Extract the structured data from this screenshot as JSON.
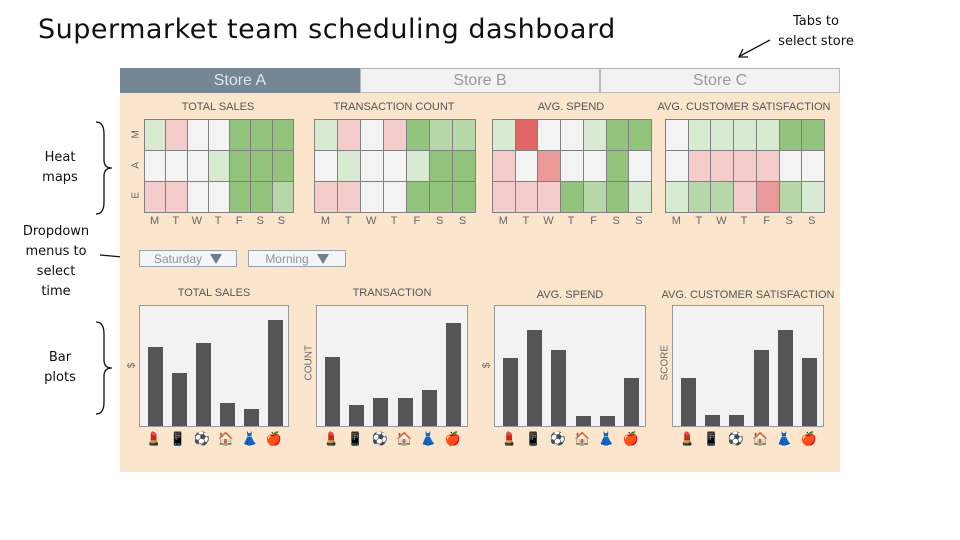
{
  "page_title": "Supermarket team scheduling dashboard",
  "annotations": {
    "tabs": "Tabs to\nselect store",
    "heat": "Heat\nmaps",
    "dropdowns": "Dropdown\nmenus to\nselect\ntime",
    "bars": "Bar\nplots"
  },
  "tabs": [
    {
      "label": "Store A",
      "active": true
    },
    {
      "label": "Store B",
      "active": false
    },
    {
      "label": "Store C",
      "active": false
    }
  ],
  "days": [
    "M",
    "T",
    "W",
    "T",
    "F",
    "S",
    "S"
  ],
  "shifts": [
    "M",
    "A",
    "E"
  ],
  "heat_scale": {
    "-3": "#e06666",
    "-2": "#ea9999",
    "-1": "#f4cccc",
    "0": "#f3f3f3",
    "1": "#d9ead3",
    "2": "#b6d7a8",
    "3": "#93c47d"
  },
  "heatmaps": [
    {
      "title": "TOTAL SALES",
      "show_row_labels": true,
      "rows": [
        [
          1,
          -1,
          0,
          0,
          3,
          3,
          3
        ],
        [
          0,
          0,
          0,
          1,
          3,
          3,
          3
        ],
        [
          -1,
          -1,
          0,
          0,
          3,
          3,
          2
        ]
      ]
    },
    {
      "title": "TRANSACTION COUNT",
      "show_row_labels": false,
      "rows": [
        [
          1,
          -1,
          0,
          -1,
          3,
          2,
          2
        ],
        [
          0,
          1,
          0,
          0,
          1,
          3,
          3
        ],
        [
          -1,
          -1,
          0,
          0,
          3,
          3,
          3
        ]
      ]
    },
    {
      "title": "AVG. SPEND",
      "show_row_labels": false,
      "rows": [
        [
          1,
          -3,
          0,
          0,
          1,
          3,
          3
        ],
        [
          -1,
          0,
          -2,
          0,
          0,
          3,
          0
        ],
        [
          -1,
          -1,
          -1,
          3,
          2,
          3,
          1
        ]
      ]
    },
    {
      "title": "AVG. CUSTOMER SATISFACTION",
      "show_row_labels": false,
      "rows": [
        [
          0,
          1,
          1,
          1,
          1,
          3,
          3
        ],
        [
          0,
          -1,
          -1,
          -1,
          -1,
          0,
          0
        ],
        [
          1,
          2,
          2,
          -1,
          -2,
          2,
          1
        ]
      ]
    }
  ],
  "dropdowns": {
    "day": "Saturday",
    "shift": "Morning"
  },
  "category_icons": [
    "💄",
    "📱",
    "⚽",
    "🏠",
    "👗",
    "🍎"
  ],
  "chart_data": [
    {
      "type": "bar",
      "title": "TOTAL SALES",
      "ylabel": "$",
      "values": [
        0.75,
        0.5,
        0.78,
        0.22,
        0.16,
        1.0
      ]
    },
    {
      "type": "bar",
      "title": "TRANSACTION",
      "ylabel": "COUNT",
      "values": [
        0.65,
        0.2,
        0.26,
        0.26,
        0.34,
        0.97
      ]
    },
    {
      "type": "bar",
      "title": "AVG. SPEND",
      "ylabel": "$",
      "values": [
        0.64,
        0.91,
        0.72,
        0.09,
        0.09,
        0.45
      ]
    },
    {
      "type": "bar",
      "title": "AVG. CUSTOMER SATISFACTION",
      "ylabel": "SCORE",
      "values": [
        0.45,
        0.1,
        0.1,
        0.72,
        0.91,
        0.64
      ]
    }
  ]
}
